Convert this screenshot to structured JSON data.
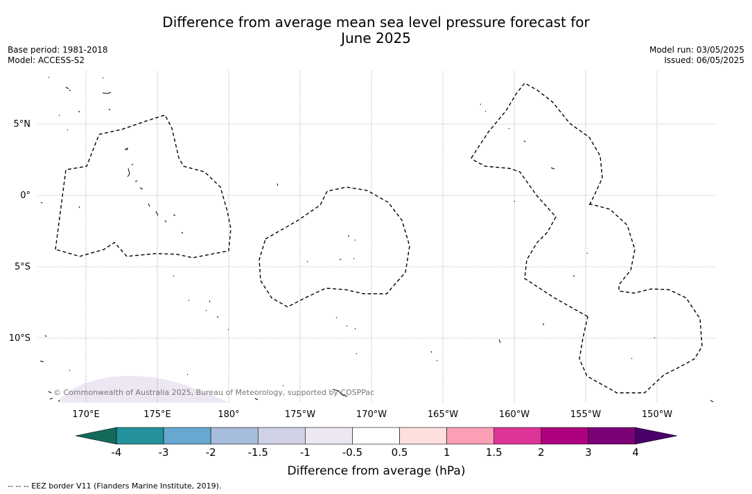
{
  "title_line1": "Difference from average mean sea level pressure forecast for",
  "title_line2": "June 2025",
  "meta_left": [
    "Base period: 1981-2018",
    "Model: ACCESS-S2"
  ],
  "meta_right": [
    "Model run: 03/05/2025",
    "Issued: 06/05/2025"
  ],
  "map": {
    "lat_labels": [
      "5°N",
      "0°",
      "5°S",
      "10°S"
    ],
    "lon_labels": [
      "170°E",
      "175°E",
      "180°",
      "175°W",
      "170°W",
      "165°W",
      "160°W",
      "155°W",
      "150°W"
    ],
    "copyright": "© Commonwealth of Australia 2025, Bureau of Meteorology, supported by COSPPac"
  },
  "colorbar": {
    "ticks": [
      "-4",
      "-3",
      "-2",
      "-1.5",
      "-1",
      "-0.5",
      "0.5",
      "1",
      "1.5",
      "2",
      "3",
      "4"
    ],
    "colors": {
      "below_min": "#136b5c",
      "bins": [
        "#23929a",
        "#66a8d0",
        "#a6bddb",
        "#d0d1e6",
        "#ece7f2",
        "#ffffff",
        "#fde0dd",
        "#fa9fb5",
        "#dd3497",
        "#ae017e",
        "#7a0177"
      ],
      "above_max": "#49006a"
    },
    "label": "Difference from average (hPa)"
  },
  "footnote": "--  --  -- EEZ border V11 (Flanders Marine Institute, 2019)."
}
